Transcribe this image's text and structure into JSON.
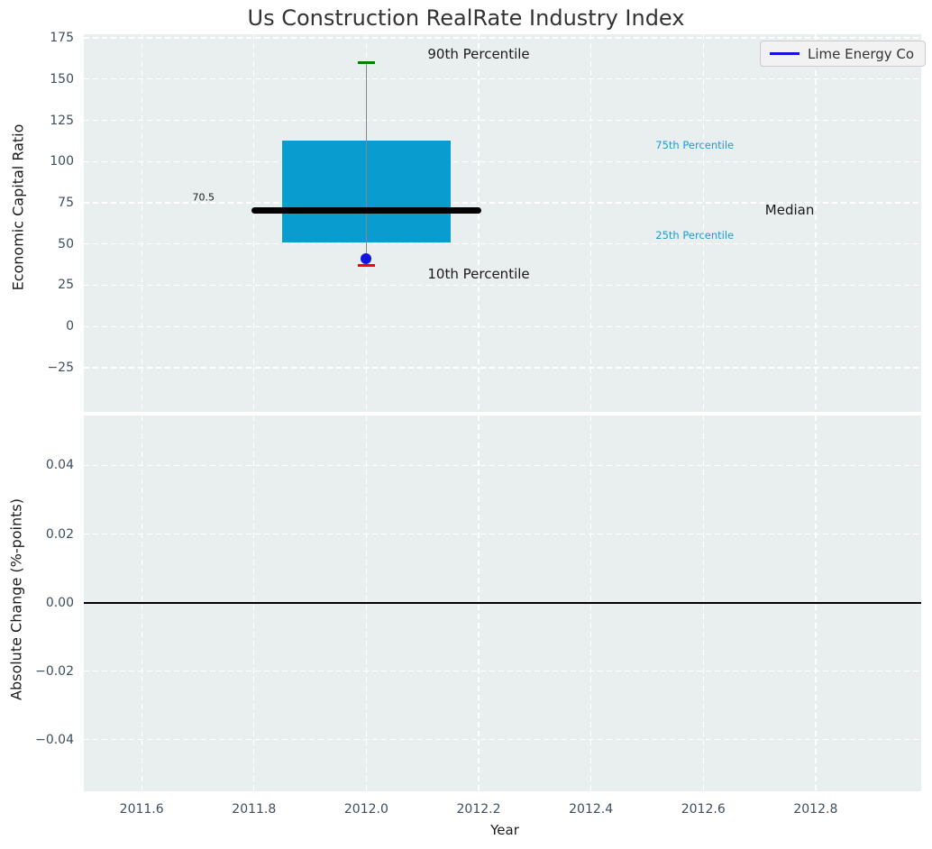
{
  "title": "Us Construction RealRate Industry Index",
  "xlabel": "Year",
  "legend": {
    "label": "Lime Energy Co"
  },
  "colors": {
    "plot_bg": "#E9EEEF",
    "grid": "#FFFFFF",
    "tick_label": "#3D4E5E",
    "title_text": "#333333",
    "axis_label": "#1A1A1A",
    "box_fill": "#099CCE",
    "median_line": "#000000",
    "whisker_line": "#888888",
    "p90_cap": "#008000",
    "p10_cap": "#FF0000",
    "company_marker": "#1414E0",
    "legend_line": "#1414E0",
    "legend_bg": "#F2F2F2",
    "legend_border": "#CCCCCC",
    "percentile_text": "#1C9CD6",
    "zero_line": "#000000"
  },
  "chart_data": [
    {
      "type": "box",
      "title": "Us Construction RealRate Industry Index",
      "xlabel": "Year",
      "ylabel": "Economic Capital Ratio",
      "xlim": [
        2011.497,
        2012.988
      ],
      "ylim": [
        -51.8,
        177.2
      ],
      "xticks": [
        2011.6,
        2011.8,
        2012.0,
        2012.2,
        2012.4,
        2012.6,
        2012.8
      ],
      "yticks": [
        175,
        150,
        125,
        100,
        75,
        50,
        25,
        0,
        -25
      ],
      "ytick_labels": [
        "175",
        "150",
        "125",
        "100",
        "75",
        "50",
        "25",
        "0",
        "−25"
      ],
      "grid": "white dashed, both axes",
      "legend_position": "upper right",
      "series_label": "Lime Energy Co",
      "boxes": [
        {
          "x": 2012.0,
          "p90": 160,
          "p75": 112.5,
          "median": 70.5,
          "p25": 51,
          "p10": 37,
          "company_value": 41,
          "median_label": "70.5",
          "box_x_range": [
            2011.85,
            2012.15
          ],
          "median_x_range": [
            2011.795,
            2012.205
          ],
          "cap_half_width_years": 0.015
        }
      ],
      "annotations": [
        {
          "text": "90th Percentile",
          "x": 2012.2,
          "y": 165,
          "color_key": "axis_label",
          "size": 15,
          "anchor": "middle"
        },
        {
          "text": "75th Percentile",
          "x": 2012.515,
          "y": 110,
          "color_key": "percentile_text",
          "size": 11.5,
          "anchor": "start"
        },
        {
          "text": "Median",
          "x": 2012.71,
          "y": 70.5,
          "color_key": "axis_label",
          "size": 15,
          "anchor": "start"
        },
        {
          "text": "25th Percentile",
          "x": 2012.515,
          "y": 55.5,
          "color_key": "percentile_text",
          "size": 11.5,
          "anchor": "start"
        },
        {
          "text": "10th Percentile",
          "x": 2012.2,
          "y": 32,
          "color_key": "axis_label",
          "size": 15,
          "anchor": "middle"
        },
        {
          "text": "70.5",
          "x": 2011.71,
          "y": 78.5,
          "color_key": "axis_label",
          "size": 11,
          "anchor": "middle"
        }
      ]
    },
    {
      "type": "line",
      "xlabel": "Year",
      "ylabel": "Absolute Change (%-points)",
      "xlim": [
        2011.497,
        2012.988
      ],
      "ylim": [
        -0.0551,
        0.0546
      ],
      "xticks": [
        2011.6,
        2011.8,
        2012.0,
        2012.2,
        2012.4,
        2012.6,
        2012.8
      ],
      "xtick_labels": [
        "2011.6",
        "2011.8",
        "2012.0",
        "2012.2",
        "2012.4",
        "2012.6",
        "2012.8"
      ],
      "yticks": [
        0.04,
        0.02,
        0,
        -0.02,
        -0.04
      ],
      "ytick_labels": [
        "0.04",
        "0.02",
        "0.00",
        "−0.02",
        "−0.04"
      ],
      "grid": "white dashed, both axes",
      "zero_line_y": 0.0,
      "series": []
    }
  ]
}
